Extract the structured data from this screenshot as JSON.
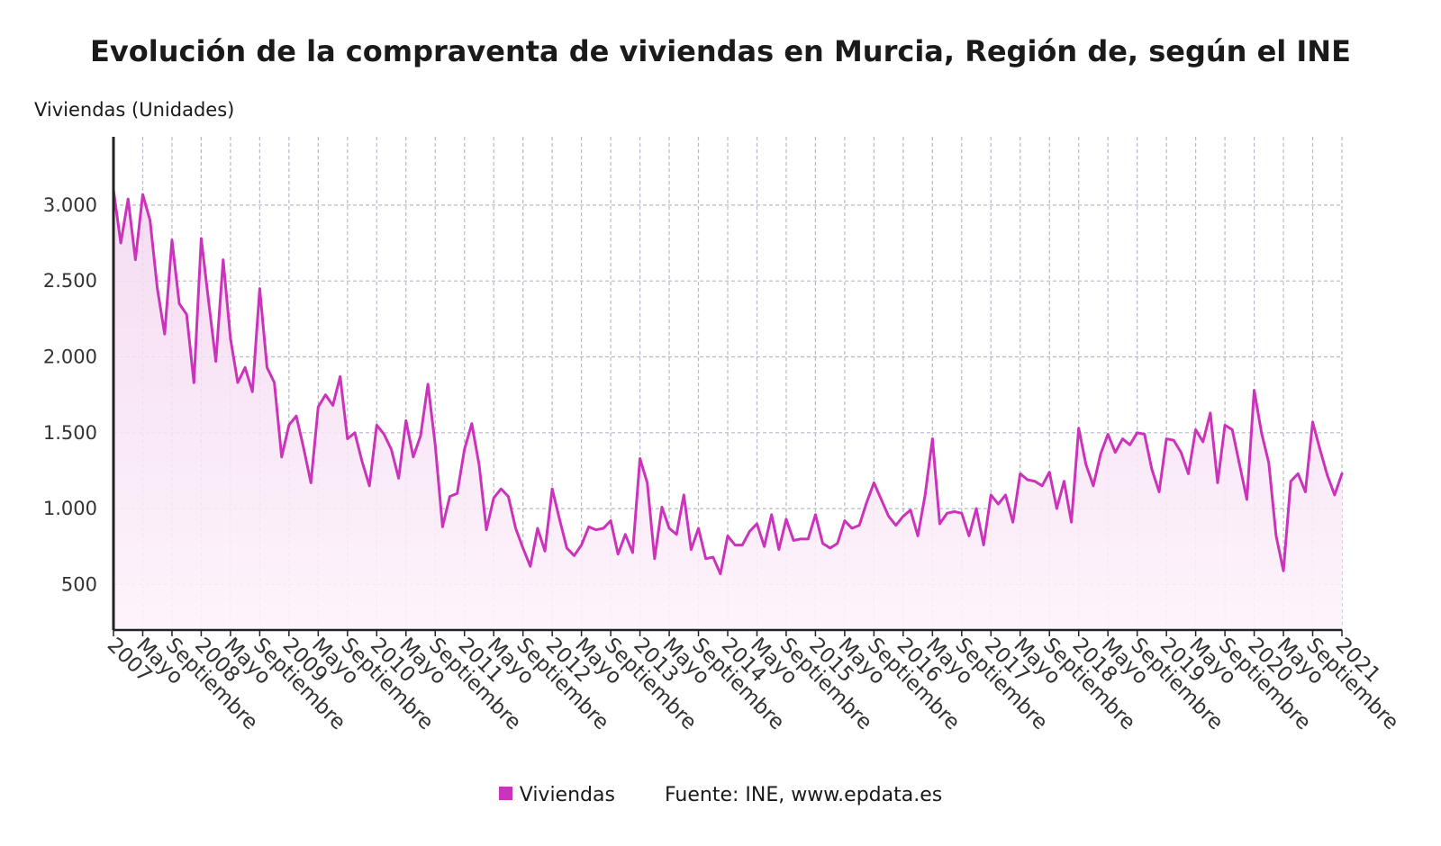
{
  "colors": {
    "line": "#cc33bb",
    "fill_top": "#f3d6ef",
    "fill_bottom": "#fdf3fb",
    "grid": "#b8b8c8",
    "axis": "#222222"
  },
  "chart_data": {
    "type": "line",
    "title": "Evolución de la compraventa de viviendas en Murcia, Región de, según el INE",
    "ylabel": "Viviendas (Unidades)",
    "ylim": [
      200,
      3450
    ],
    "yticks": [
      500,
      1000,
      1500,
      2000,
      2500,
      3000
    ],
    "ytick_labels": [
      "500",
      "1.000",
      "1.500",
      "2.000",
      "2.500",
      "3.000"
    ],
    "start": "2007-01",
    "end": "2021-01",
    "xtick_labels": [
      "2007",
      "Mayo",
      "Septiembre",
      "2008",
      "Mayo",
      "Septiembre",
      "2009",
      "Mayo",
      "Septiembre",
      "2010",
      "Mayo",
      "Septiembre",
      "2011",
      "Mayo",
      "Septiembre",
      "2012",
      "Mayo",
      "Septiembre",
      "2013",
      "Mayo",
      "Septiembre",
      "2014",
      "Mayo",
      "Septiembre",
      "2015",
      "Mayo",
      "Septiembre",
      "2016",
      "Mayo",
      "Septiembre",
      "2017",
      "Mayo",
      "Septiembre",
      "2018",
      "Mayo",
      "Septiembre",
      "2019",
      "Mayo",
      "Septiembre",
      "2020",
      "Mayo",
      "Septiembre",
      "2021"
    ],
    "grid": true,
    "series": [
      {
        "name": "Viviendas",
        "values": [
          3100,
          2750,
          3040,
          2640,
          3070,
          2900,
          2450,
          2150,
          2770,
          2350,
          2280,
          1830,
          2780,
          2370,
          1970,
          2640,
          2120,
          1830,
          1930,
          1770,
          2450,
          1930,
          1830,
          1340,
          1550,
          1610,
          1400,
          1170,
          1670,
          1750,
          1680,
          1870,
          1460,
          1500,
          1310,
          1150,
          1550,
          1490,
          1390,
          1200,
          1580,
          1340,
          1480,
          1820,
          1420,
          880,
          1080,
          1100,
          1390,
          1560,
          1290,
          860,
          1070,
          1130,
          1080,
          870,
          740,
          620,
          870,
          720,
          1130,
          930,
          740,
          690,
          760,
          880,
          860,
          870,
          920,
          700,
          830,
          710,
          1330,
          1170,
          670,
          1010,
          870,
          830,
          1090,
          730,
          870,
          670,
          680,
          570,
          820,
          760,
          760,
          850,
          900,
          750,
          960,
          730,
          930,
          790,
          800,
          800,
          960,
          770,
          740,
          770,
          920,
          870,
          890,
          1040,
          1170,
          1060,
          950,
          890,
          950,
          990,
          820,
          1090,
          1460,
          900,
          970,
          980,
          970,
          820,
          1000,
          760,
          1090,
          1030,
          1090,
          910,
          1230,
          1190,
          1180,
          1150,
          1240,
          1000,
          1180,
          910,
          1530,
          1290,
          1150,
          1360,
          1490,
          1370,
          1460,
          1420,
          1500,
          1490,
          1260,
          1110,
          1460,
          1450,
          1370,
          1230,
          1520,
          1440,
          1630,
          1170,
          1550,
          1520,
          1290,
          1060,
          1780,
          1500,
          1300,
          820,
          590,
          1180,
          1230,
          1110,
          1570,
          1390,
          1220,
          1090,
          1230
        ]
      }
    ]
  },
  "legend": {
    "series_label": "Viviendas",
    "source": "Fuente: INE, www.epdata.es"
  }
}
